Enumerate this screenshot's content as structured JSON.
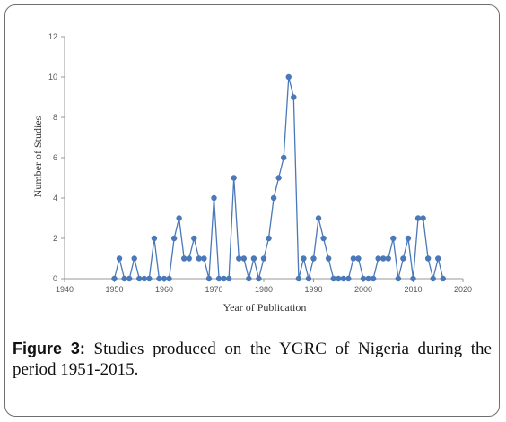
{
  "figure": {
    "label": "Figure 3:",
    "caption": "Studies produced on the YGRC of Nigeria during the period 1951-2015."
  },
  "colors": {
    "series": "#4a78b8",
    "axis": "#999999",
    "text": "#333333"
  },
  "chart_data": {
    "type": "line",
    "title": "",
    "xlabel": "Year of Publication",
    "ylabel": "Number of Studies",
    "xlim": [
      1940,
      2020
    ],
    "ylim": [
      0,
      12
    ],
    "xticks": [
      1940,
      1950,
      1960,
      1970,
      1980,
      1990,
      2000,
      2010,
      2020
    ],
    "yticks": [
      0,
      2,
      4,
      6,
      8,
      10,
      12
    ],
    "grid": false,
    "legend": "none",
    "series": [
      {
        "x": [
          1950,
          1951,
          1952,
          1953,
          1954,
          1955,
          1956,
          1957,
          1958,
          1959,
          1960,
          1961,
          1962,
          1963,
          1964,
          1965,
          1966,
          1967,
          1968,
          1969,
          1970,
          1971,
          1972,
          1973,
          1974,
          1975,
          1976,
          1977,
          1978,
          1979,
          1980,
          1981,
          1982,
          1983,
          1984,
          1985,
          1986,
          1987,
          1988,
          1989,
          1990,
          1991,
          1992,
          1993,
          1994,
          1995,
          1996,
          1997,
          1998,
          1999,
          2000,
          2001,
          2002,
          2003,
          2004,
          2005,
          2006,
          2007,
          2008,
          2009,
          2010,
          2011,
          2012,
          2013,
          2014,
          2015,
          2016
        ],
        "y": [
          0,
          1,
          0,
          0,
          1,
          0,
          0,
          0,
          2,
          0,
          0,
          0,
          2,
          3,
          1,
          1,
          2,
          1,
          1,
          0,
          4,
          0,
          0,
          0,
          5,
          1,
          1,
          0,
          1,
          0,
          1,
          2,
          4,
          5,
          6,
          10,
          9,
          0,
          1,
          0,
          1,
          3,
          2,
          1,
          0,
          0,
          0,
          0,
          1,
          1,
          0,
          0,
          0,
          1,
          1,
          1,
          2,
          0,
          1,
          2,
          0,
          3,
          3,
          1,
          0,
          1,
          0
        ]
      }
    ]
  }
}
